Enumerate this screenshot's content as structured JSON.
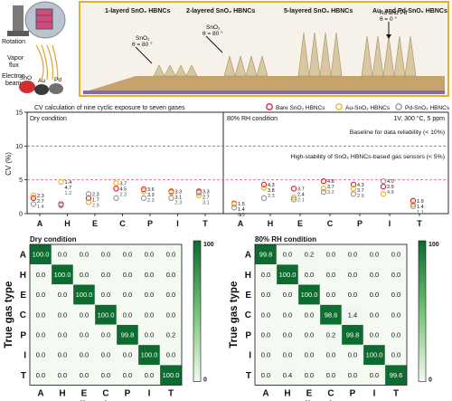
{
  "top": {
    "labels": {
      "rotation": "Rotation",
      "vapor_flux": "Vapor\nflux",
      "electron_beam": "Electron\nbeam",
      "sno2": "SnO",
      "au": "Au",
      "pd": "Pd"
    },
    "panel_titles": [
      "1-layerd SnO₂ HBNCs",
      "2-layered SnO₂ HBNCs",
      "5-layered SnO₂ HBNCs",
      "Au- and Pd-SnO₂ HBNCs"
    ],
    "angle_labels": [
      {
        "line1": "SnO₂",
        "line2": "θ = 80 °"
      },
      {
        "line1": "SnO₂",
        "line2": "θ = 80 °"
      },
      {
        "line1": "Au and Pd",
        "line2": "θ = 0 °"
      }
    ]
  },
  "cv_chart": {
    "title": "CV calculation of nine cyclic exposure to seven gases",
    "legend": [
      {
        "label": "Bare SnO₂ HBNCs",
        "color": "#e0203c"
      },
      {
        "label": "Au-SnO₂ HBNCs",
        "color": "#e8b820"
      },
      {
        "label": "Pd-SnO₂ HBNCs",
        "color": "#9a9a9a"
      }
    ],
    "conditions": [
      "Dry condition",
      "80% RH condition"
    ],
    "setting": "1V, 300 °C, 5 ppm",
    "baseline_text": "Baseline for data reliability (< 10%)",
    "stability_text": "High-stability of SnO₂ HBNCs-based gas sensors (< 5%)",
    "ylabel": "CV (%)",
    "yticks": [
      "0",
      "5",
      "10",
      "15"
    ],
    "gases": [
      "A",
      "H",
      "E",
      "C",
      "P",
      "I",
      "T"
    ]
  },
  "chart_data": [
    {
      "type": "scatter",
      "title": "CV calculation of nine cyclic exposure to seven gases",
      "ylabel": "CV (%)",
      "ylim": [
        0,
        15
      ],
      "categories": [
        "A",
        "H",
        "E",
        "C",
        "P",
        "I",
        "T",
        "A",
        "H",
        "E",
        "C",
        "P",
        "I",
        "T"
      ],
      "series": [
        {
          "name": "Bare SnO₂ HBNCs",
          "values": [
            2.3,
            1.4,
            2.3,
            3.7,
            3.6,
            3.3,
            3.3,
            1.5,
            4.3,
            3.7,
            4.8,
            4.3,
            4.0,
            1.9
          ]
        },
        {
          "name": "Au-SnO₂ HBNCs",
          "values": [
            2.7,
            4.7,
            1.7,
            4.5,
            3.3,
            3.1,
            2.7,
            1.4,
            3.8,
            2.4,
            3.7,
            3.7,
            2.9,
            1.4
          ]
        },
        {
          "name": "Pd-SnO₂ HBNCs",
          "values": [
            1.4,
            1.2,
            2.9,
            2.3,
            2.3,
            2.3,
            3.1,
            0.9,
            2.3,
            2.1,
            3.2,
            2.9,
            4.8,
            1.1
          ]
        }
      ],
      "reference_lines": [
        10,
        5
      ]
    },
    {
      "type": "heatmap",
      "title": "Dry condition",
      "xlabel": "Predicted gas type",
      "ylabel": "True gas type",
      "x": [
        "A",
        "H",
        "E",
        "C",
        "P",
        "I",
        "T"
      ],
      "y": [
        "A",
        "H",
        "E",
        "C",
        "P",
        "I",
        "T"
      ],
      "values": [
        [
          100.0,
          0.0,
          0.0,
          0.0,
          0.0,
          0.0,
          0.0
        ],
        [
          0.0,
          100.0,
          0.0,
          0.0,
          0.0,
          0.0,
          0.0
        ],
        [
          0.0,
          0.0,
          100.0,
          0.0,
          0.0,
          0.0,
          0.0
        ],
        [
          0.0,
          0.0,
          0.0,
          100.0,
          0.0,
          0.0,
          0.0
        ],
        [
          0.0,
          0.0,
          0.0,
          0.0,
          99.8,
          0.0,
          0.2
        ],
        [
          0.0,
          0.0,
          0.0,
          0.0,
          0.0,
          100.0,
          0.0
        ],
        [
          0.0,
          0.0,
          0.0,
          0.0,
          0.0,
          0.0,
          100.0
        ]
      ],
      "colorbar": {
        "min": 0,
        "max": 100,
        "ticks": [
          "100",
          "0"
        ]
      }
    },
    {
      "type": "heatmap",
      "title": "80% RH condition",
      "xlabel": "Predicted gas type",
      "ylabel": "True gas type",
      "x": [
        "A",
        "H",
        "E",
        "C",
        "P",
        "I",
        "T"
      ],
      "y": [
        "A",
        "H",
        "E",
        "C",
        "P",
        "I",
        "T"
      ],
      "values": [
        [
          99.8,
          0.0,
          0.2,
          0.0,
          0.0,
          0.0,
          0.0
        ],
        [
          0.0,
          100.0,
          0.0,
          0.0,
          0.0,
          0.0,
          0.0
        ],
        [
          0.0,
          0.0,
          100.0,
          0.0,
          0.0,
          0.0,
          0.0
        ],
        [
          0.0,
          0.0,
          0.0,
          98.6,
          1.4,
          0.0,
          0.0
        ],
        [
          0.0,
          0.0,
          0.0,
          0.2,
          99.8,
          0.0,
          0.0
        ],
        [
          0.0,
          0.0,
          0.0,
          0.0,
          0.0,
          100.0,
          0.0
        ],
        [
          0.0,
          0.4,
          0.0,
          0.0,
          0.0,
          0.0,
          99.6
        ]
      ],
      "colorbar": {
        "min": 0,
        "max": 100,
        "ticks": [
          "100",
          "0"
        ]
      }
    }
  ],
  "colors": {
    "heat_low": "#f4f9f1",
    "heat_high": "#0d6b30",
    "frame": "#e8ad35",
    "substrate": "#caa36a"
  }
}
